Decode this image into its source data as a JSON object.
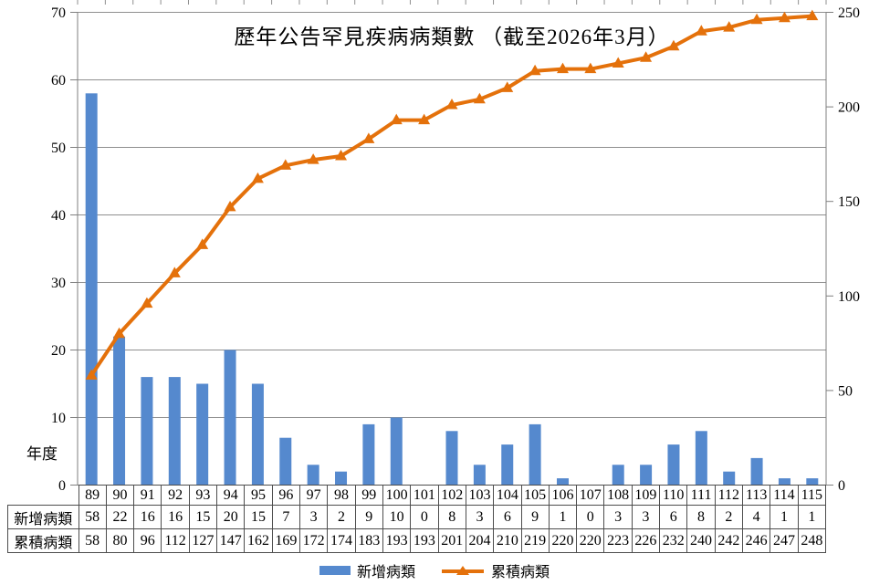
{
  "title": "歷年公告罕見疾病病類數 （截至2026年3月）",
  "axis_left_label": "年度",
  "legend": [
    {
      "label": "新增病類",
      "swatch": "bar"
    },
    {
      "label": "累積病類",
      "swatch": "line-triangle-marker"
    }
  ],
  "table": {
    "row_labels": [
      "新增病類",
      "累積病類"
    ]
  },
  "colors": {
    "bar": "#5589CE",
    "line": "#E4710B",
    "grid": "#8F8F8F",
    "axis": "#7F7F7F",
    "table_border": "#4D4D4D"
  },
  "chart_data": {
    "type": [
      "bar",
      "line"
    ],
    "title": "歷年公告罕見疾病病類數 （截至2026年3月）",
    "categories": [
      "89",
      "90",
      "91",
      "92",
      "93",
      "94",
      "95",
      "96",
      "97",
      "98",
      "99",
      "100",
      "101",
      "102",
      "103",
      "104",
      "105",
      "106",
      "107",
      "108",
      "109",
      "110",
      "111",
      "112",
      "113",
      "114",
      "115"
    ],
    "series": [
      {
        "name": "新增病類",
        "type": "bar",
        "axis": "left",
        "values": [
          58,
          22,
          16,
          16,
          15,
          20,
          15,
          7,
          3,
          2,
          9,
          10,
          0,
          8,
          3,
          6,
          9,
          1,
          0,
          3,
          3,
          6,
          8,
          2,
          4,
          1,
          1
        ]
      },
      {
        "name": "累積病類",
        "type": "line",
        "axis": "right",
        "values": [
          58,
          80,
          96,
          112,
          127,
          147,
          162,
          169,
          172,
          174,
          183,
          193,
          193,
          201,
          204,
          210,
          219,
          220,
          220,
          223,
          226,
          232,
          240,
          242,
          246,
          247,
          248
        ]
      }
    ],
    "xlabel": "年度",
    "y_left": {
      "min": 0,
      "max": 70,
      "step": 10
    },
    "y_right": {
      "min": 0,
      "max": 250,
      "step": 50
    },
    "grid": true,
    "legend_position": "bottom"
  }
}
